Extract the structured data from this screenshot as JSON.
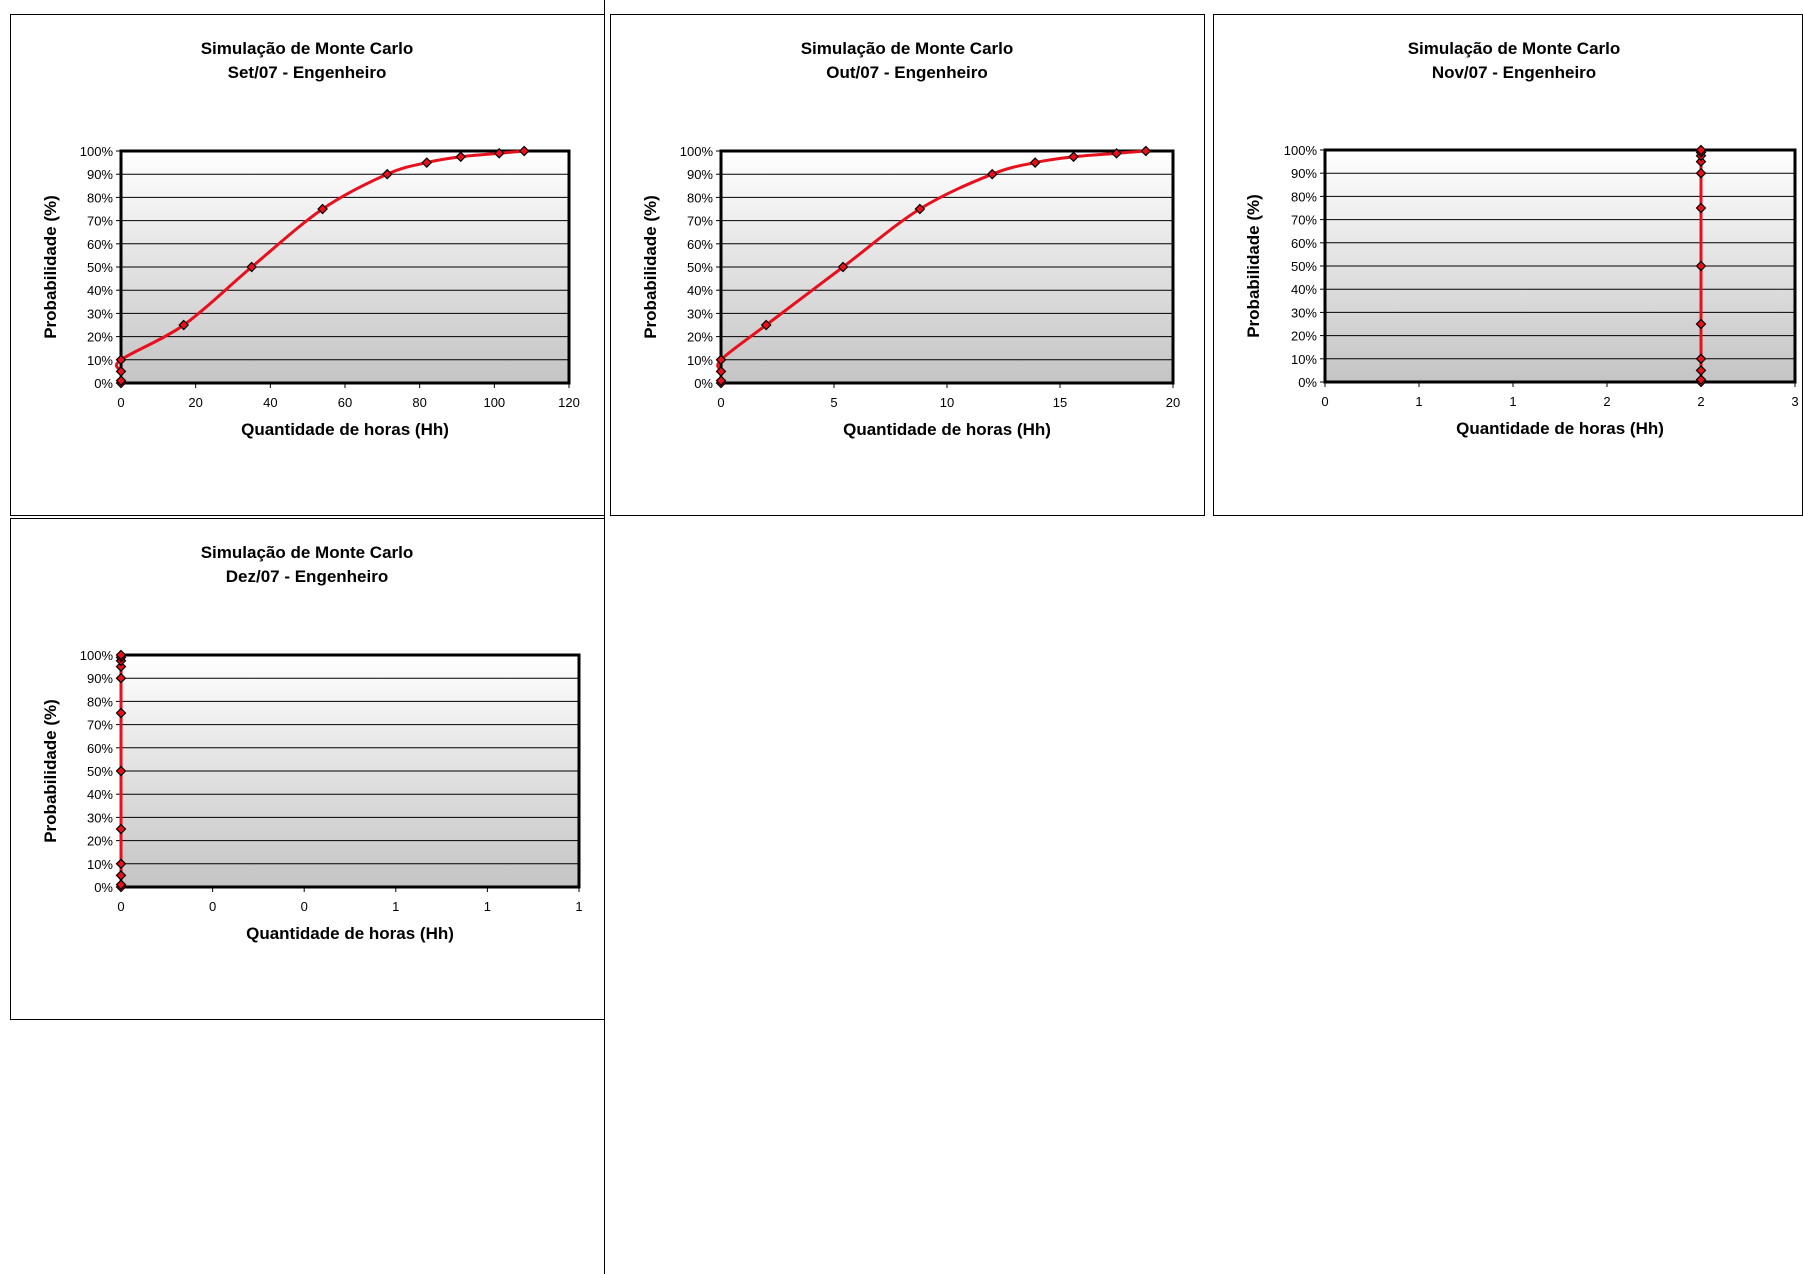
{
  "chart_data": [
    {
      "type": "line",
      "title": "Simulação de Monte Carlo",
      "subtitle": "Set/07 - Engenheiro",
      "xlabel": "Quantidade de horas (Hh)",
      "ylabel": "Probabilidade (%)",
      "xlim": [
        0,
        120
      ],
      "ylim": [
        0,
        100
      ],
      "xticks": [
        "0",
        "20",
        "40",
        "60",
        "80",
        "100",
        "120"
      ],
      "yticks": [
        "0%",
        "10%",
        "20%",
        "30%",
        "40%",
        "50%",
        "60%",
        "70%",
        "80%",
        "90%",
        "100%"
      ],
      "grid": true,
      "legend": "none",
      "line_color": "#e8101c",
      "series": [
        {
          "x": [
            0,
            0,
            0,
            0,
            16.8,
            35.0,
            54.0,
            71.3,
            81.9,
            91.0,
            101.3,
            108.0
          ],
          "y": [
            0,
            1,
            5,
            10,
            25,
            50,
            75,
            90,
            95,
            97.5,
            99,
            100
          ]
        }
      ]
    },
    {
      "type": "line",
      "title": "Simulação de Monte Carlo",
      "subtitle": "Out/07 - Engenheiro",
      "xlabel": "Quantidade de horas (Hh)",
      "ylabel": "Probabilidade (%)",
      "xlim": [
        0,
        20
      ],
      "ylim": [
        0,
        100
      ],
      "xticks": [
        "0",
        "5",
        "10",
        "15",
        "20"
      ],
      "yticks": [
        "0%",
        "10%",
        "20%",
        "30%",
        "40%",
        "50%",
        "60%",
        "70%",
        "80%",
        "90%",
        "100%"
      ],
      "grid": true,
      "legend": "none",
      "line_color": "#e8101c",
      "series": [
        {
          "x": [
            0,
            0,
            0,
            0,
            2.0,
            5.4,
            8.8,
            12.0,
            13.9,
            15.6,
            17.5,
            18.8
          ],
          "y": [
            0,
            1,
            5,
            10,
            25,
            50,
            75,
            90,
            95,
            97.5,
            99,
            100
          ]
        }
      ]
    },
    {
      "type": "line",
      "title": "Simulação de Monte Carlo",
      "subtitle": "Nov/07 - Engenheiro",
      "xlabel": "Quantidade de horas (Hh)",
      "ylabel": "Probabilidade (%)",
      "xlim": [
        0,
        2.5
      ],
      "ylim": [
        0,
        100
      ],
      "xticks": [
        "0",
        "1",
        "1",
        "2",
        "2",
        "3"
      ],
      "yticks": [
        "0%",
        "10%",
        "20%",
        "30%",
        "40%",
        "50%",
        "60%",
        "70%",
        "80%",
        "90%",
        "100%"
      ],
      "grid": true,
      "legend": "none",
      "line_color": "#e8101c",
      "series": [
        {
          "x": [
            2,
            2,
            2,
            2,
            2,
            2,
            2,
            2,
            2,
            2,
            2,
            2
          ],
          "y": [
            0,
            1,
            5,
            10,
            25,
            50,
            75,
            90,
            95,
            97.5,
            99,
            100
          ]
        }
      ]
    },
    {
      "type": "line",
      "title": "Simulação de Monte Carlo",
      "subtitle": "Dez/07 - Engenheiro",
      "xlabel": "Quantidade de horas (Hh)",
      "ylabel": "Probabilidade (%)",
      "xlim": [
        0,
        1
      ],
      "ylim": [
        0,
        100
      ],
      "xticks": [
        "0",
        "0",
        "0",
        "1",
        "1",
        "1"
      ],
      "yticks": [
        "0%",
        "10%",
        "20%",
        "30%",
        "40%",
        "50%",
        "60%",
        "70%",
        "80%",
        "90%",
        "100%"
      ],
      "grid": true,
      "legend": "none",
      "line_color": "#e8101c",
      "series": [
        {
          "x": [
            0,
            0,
            0,
            0,
            0,
            0,
            0,
            0,
            0,
            0,
            0,
            0
          ],
          "y": [
            0,
            1,
            5,
            10,
            25,
            50,
            75,
            90,
            95,
            97.5,
            99,
            100
          ]
        }
      ]
    }
  ]
}
